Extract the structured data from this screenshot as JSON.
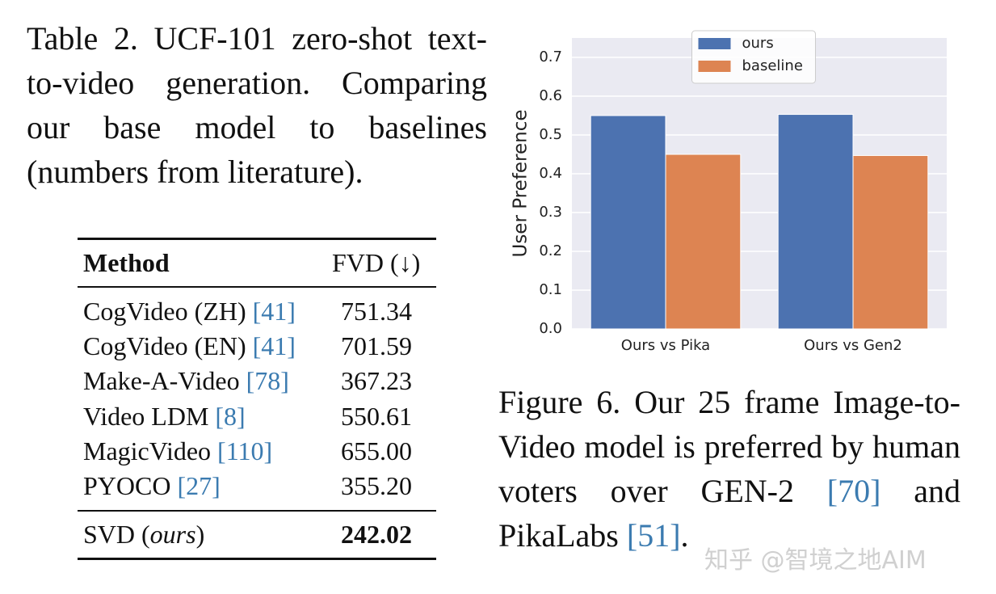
{
  "table_caption": "Table 2. UCF-101 zero-shot text-to-video generation. Comparing our base model to baselines (numbers from literature).",
  "table": {
    "header": [
      "Method",
      "FVD (↓)"
    ],
    "rows": [
      {
        "method": "CogVideo (ZH) ",
        "cite": "[41]",
        "fvd": "751.34"
      },
      {
        "method": "CogVideo (EN) ",
        "cite": "[41]",
        "fvd": "701.59"
      },
      {
        "method": "Make-A-Video ",
        "cite": "[78]",
        "fvd": "367.23"
      },
      {
        "method": "Video LDM ",
        "cite": "[8]",
        "fvd": "550.61"
      },
      {
        "method": "MagicVideo ",
        "cite": "[110]",
        "fvd": "655.00"
      },
      {
        "method": "PYOCO ",
        "cite": "[27]",
        "fvd": "355.20"
      }
    ],
    "ours": {
      "method_parts": [
        "SVD (",
        "ours",
        ")"
      ],
      "fvd": "242.02"
    }
  },
  "chart_data": {
    "type": "bar",
    "ylabel": "User Preference",
    "categories": [
      "Ours vs Pika",
      "Ours vs Gen2"
    ],
    "series": [
      {
        "name": "ours",
        "color": "#4c72b0",
        "values": [
          0.55,
          0.553
        ]
      },
      {
        "name": "baseline",
        "color": "#dd8452",
        "values": [
          0.45,
          0.447
        ]
      }
    ],
    "ylim": [
      0,
      0.75
    ],
    "yticks": [
      {
        "value": 0,
        "label": "0.0"
      },
      0.1,
      0.2,
      0.3,
      0.4,
      0.5,
      0.6,
      0.7
    ],
    "grid": true,
    "legend": "upper center"
  },
  "figure_caption": [
    "Figure 6. Our 25 frame Image-to-Video model is preferred by human voters over GEN-2 ",
    "[70]",
    " and PikaLabs ",
    "[51]",
    "."
  ],
  "watermark": "知乎 @智境之地AIM"
}
